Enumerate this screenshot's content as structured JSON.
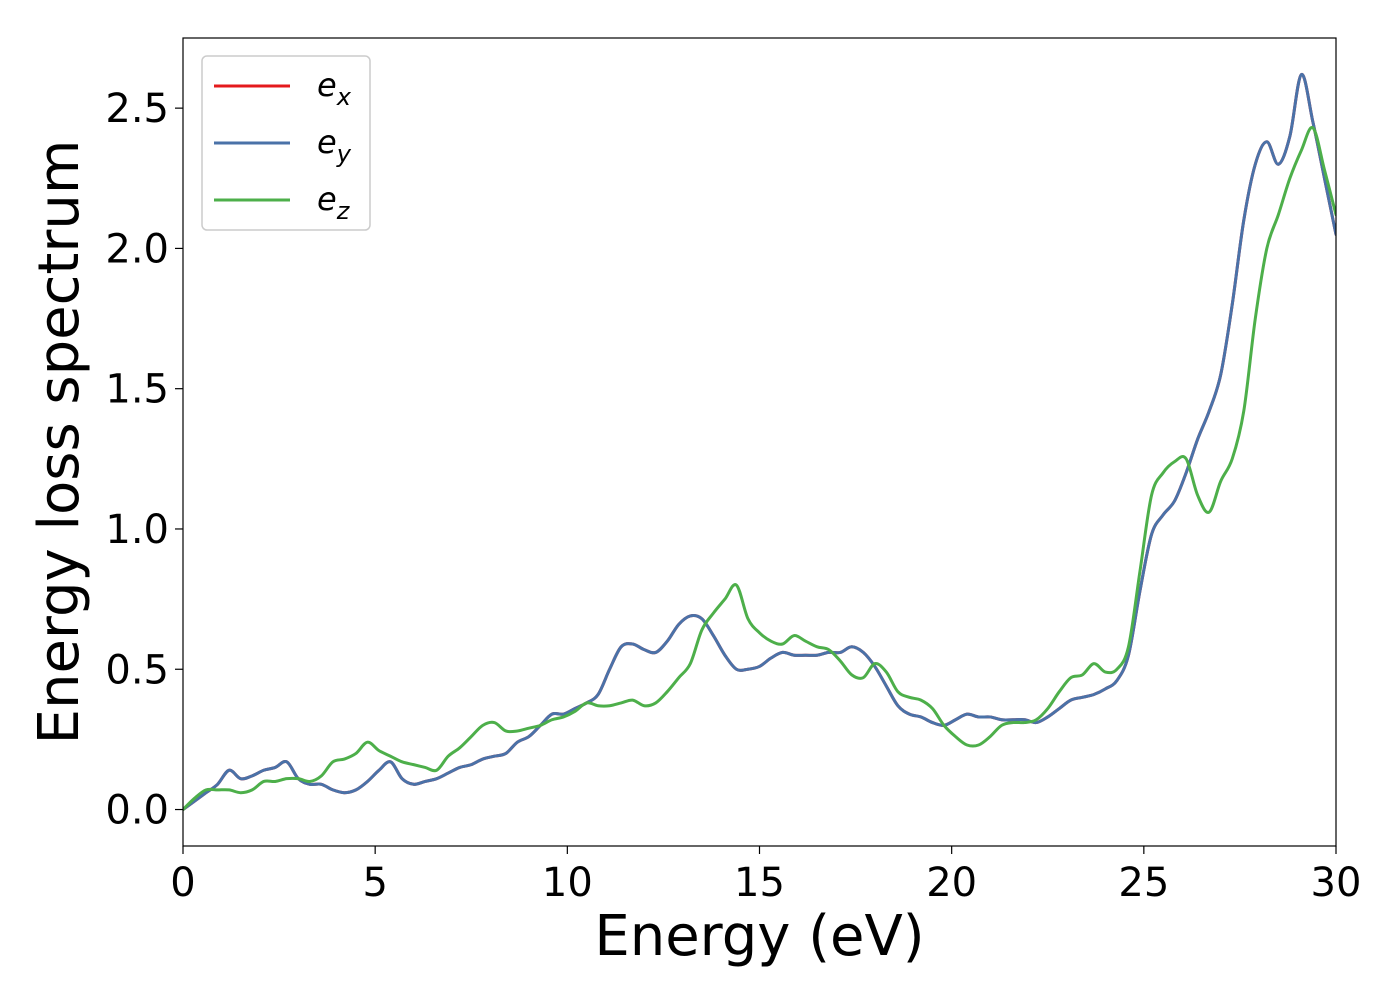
{
  "chart_data": {
    "type": "line",
    "title": "",
    "xlabel": "Energy (eV)",
    "ylabel": "Energy loss spectrum",
    "xlim": [
      0,
      30
    ],
    "ylim": [
      -0.13,
      2.75
    ],
    "xticks": [
      0,
      5,
      10,
      15,
      20,
      25,
      30
    ],
    "xtick_labels": [
      "0",
      "5",
      "10",
      "15",
      "20",
      "25",
      "30"
    ],
    "yticks": [
      0.0,
      0.5,
      1.0,
      1.5,
      2.0,
      2.5
    ],
    "ytick_labels": [
      "0.0",
      "0.5",
      "1.0",
      "1.5",
      "2.0",
      "2.5"
    ],
    "grid": false,
    "legend_position": "top-left",
    "series": [
      {
        "name": "e_x",
        "label_base": "e",
        "label_sub": "x",
        "color": "#e41a1c",
        "x": [
          0,
          0.3,
          0.6,
          0.9,
          1.2,
          1.5,
          1.8,
          2.1,
          2.4,
          2.7,
          3.0,
          3.3,
          3.6,
          3.9,
          4.2,
          4.5,
          4.8,
          5.1,
          5.4,
          5.7,
          6.0,
          6.3,
          6.6,
          6.9,
          7.2,
          7.5,
          7.8,
          8.1,
          8.4,
          8.7,
          9.0,
          9.3,
          9.6,
          9.9,
          10.2,
          10.5,
          10.8,
          11.1,
          11.4,
          11.7,
          12.0,
          12.3,
          12.6,
          12.9,
          13.2,
          13.5,
          13.8,
          14.1,
          14.4,
          14.7,
          15.0,
          15.3,
          15.6,
          15.9,
          16.2,
          16.5,
          16.8,
          17.1,
          17.4,
          17.7,
          18.0,
          18.3,
          18.6,
          18.9,
          19.2,
          19.5,
          19.8,
          20.1,
          20.4,
          20.7,
          21.0,
          21.3,
          21.6,
          21.9,
          22.2,
          22.5,
          22.8,
          23.1,
          23.4,
          23.7,
          24.0,
          24.3,
          24.6,
          24.9,
          25.2,
          25.5,
          25.8,
          26.1,
          26.4,
          26.7,
          27.0,
          27.3,
          27.6,
          27.9,
          28.2,
          28.5,
          28.8,
          29.1,
          29.4,
          29.7,
          30.0
        ],
        "values": [
          0.0,
          0.03,
          0.06,
          0.09,
          0.14,
          0.11,
          0.12,
          0.14,
          0.15,
          0.17,
          0.11,
          0.09,
          0.09,
          0.07,
          0.06,
          0.07,
          0.1,
          0.14,
          0.17,
          0.11,
          0.09,
          0.1,
          0.11,
          0.13,
          0.15,
          0.16,
          0.18,
          0.19,
          0.2,
          0.24,
          0.26,
          0.3,
          0.34,
          0.34,
          0.36,
          0.38,
          0.41,
          0.5,
          0.58,
          0.59,
          0.57,
          0.56,
          0.6,
          0.66,
          0.69,
          0.68,
          0.62,
          0.55,
          0.5,
          0.5,
          0.51,
          0.54,
          0.56,
          0.55,
          0.55,
          0.55,
          0.56,
          0.56,
          0.58,
          0.56,
          0.51,
          0.44,
          0.37,
          0.34,
          0.33,
          0.31,
          0.3,
          0.32,
          0.34,
          0.33,
          0.33,
          0.32,
          0.32,
          0.32,
          0.31,
          0.33,
          0.36,
          0.39,
          0.4,
          0.41,
          0.43,
          0.46,
          0.55,
          0.78,
          0.98,
          1.05,
          1.1,
          1.2,
          1.32,
          1.42,
          1.55,
          1.8,
          2.1,
          2.3,
          2.38,
          2.3,
          2.4,
          2.62,
          2.45,
          2.25,
          2.05
        ]
      },
      {
        "name": "e_y",
        "label_base": "e",
        "label_sub": "y",
        "color": "#4a72a8",
        "x": [
          0,
          0.3,
          0.6,
          0.9,
          1.2,
          1.5,
          1.8,
          2.1,
          2.4,
          2.7,
          3.0,
          3.3,
          3.6,
          3.9,
          4.2,
          4.5,
          4.8,
          5.1,
          5.4,
          5.7,
          6.0,
          6.3,
          6.6,
          6.9,
          7.2,
          7.5,
          7.8,
          8.1,
          8.4,
          8.7,
          9.0,
          9.3,
          9.6,
          9.9,
          10.2,
          10.5,
          10.8,
          11.1,
          11.4,
          11.7,
          12.0,
          12.3,
          12.6,
          12.9,
          13.2,
          13.5,
          13.8,
          14.1,
          14.4,
          14.7,
          15.0,
          15.3,
          15.6,
          15.9,
          16.2,
          16.5,
          16.8,
          17.1,
          17.4,
          17.7,
          18.0,
          18.3,
          18.6,
          18.9,
          19.2,
          19.5,
          19.8,
          20.1,
          20.4,
          20.7,
          21.0,
          21.3,
          21.6,
          21.9,
          22.2,
          22.5,
          22.8,
          23.1,
          23.4,
          23.7,
          24.0,
          24.3,
          24.6,
          24.9,
          25.2,
          25.5,
          25.8,
          26.1,
          26.4,
          26.7,
          27.0,
          27.3,
          27.6,
          27.9,
          28.2,
          28.5,
          28.8,
          29.1,
          29.4,
          29.7,
          30.0
        ],
        "values": [
          0.0,
          0.03,
          0.06,
          0.09,
          0.14,
          0.11,
          0.12,
          0.14,
          0.15,
          0.17,
          0.11,
          0.09,
          0.09,
          0.07,
          0.06,
          0.07,
          0.1,
          0.14,
          0.17,
          0.11,
          0.09,
          0.1,
          0.11,
          0.13,
          0.15,
          0.16,
          0.18,
          0.19,
          0.2,
          0.24,
          0.26,
          0.3,
          0.34,
          0.34,
          0.36,
          0.38,
          0.41,
          0.5,
          0.58,
          0.59,
          0.57,
          0.56,
          0.6,
          0.66,
          0.69,
          0.68,
          0.62,
          0.55,
          0.5,
          0.5,
          0.51,
          0.54,
          0.56,
          0.55,
          0.55,
          0.55,
          0.56,
          0.56,
          0.58,
          0.56,
          0.51,
          0.44,
          0.37,
          0.34,
          0.33,
          0.31,
          0.3,
          0.32,
          0.34,
          0.33,
          0.33,
          0.32,
          0.32,
          0.32,
          0.31,
          0.33,
          0.36,
          0.39,
          0.4,
          0.41,
          0.43,
          0.46,
          0.55,
          0.78,
          0.98,
          1.05,
          1.1,
          1.2,
          1.32,
          1.42,
          1.55,
          1.8,
          2.1,
          2.3,
          2.38,
          2.3,
          2.4,
          2.62,
          2.45,
          2.25,
          2.05
        ]
      },
      {
        "name": "e_z",
        "label_base": "e",
        "label_sub": "z",
        "color": "#4daf4a",
        "x": [
          0,
          0.3,
          0.6,
          0.9,
          1.2,
          1.5,
          1.8,
          2.1,
          2.4,
          2.7,
          3.0,
          3.3,
          3.6,
          3.9,
          4.2,
          4.5,
          4.8,
          5.1,
          5.4,
          5.7,
          6.0,
          6.3,
          6.6,
          6.9,
          7.2,
          7.5,
          7.8,
          8.1,
          8.4,
          8.7,
          9.0,
          9.3,
          9.6,
          9.9,
          10.2,
          10.5,
          10.8,
          11.1,
          11.4,
          11.7,
          12.0,
          12.3,
          12.6,
          12.9,
          13.2,
          13.5,
          13.8,
          14.1,
          14.4,
          14.7,
          15.0,
          15.3,
          15.6,
          15.9,
          16.2,
          16.5,
          16.8,
          17.1,
          17.4,
          17.7,
          18.0,
          18.3,
          18.6,
          18.9,
          19.2,
          19.5,
          19.8,
          20.1,
          20.4,
          20.7,
          21.0,
          21.3,
          21.6,
          21.9,
          22.2,
          22.5,
          22.8,
          23.1,
          23.4,
          23.7,
          24.0,
          24.3,
          24.6,
          24.9,
          25.2,
          25.5,
          25.8,
          26.1,
          26.4,
          26.7,
          27.0,
          27.3,
          27.6,
          27.9,
          28.2,
          28.5,
          28.8,
          29.1,
          29.4,
          29.7,
          30.0
        ],
        "values": [
          0.0,
          0.04,
          0.07,
          0.07,
          0.07,
          0.06,
          0.07,
          0.1,
          0.1,
          0.11,
          0.11,
          0.1,
          0.12,
          0.17,
          0.18,
          0.2,
          0.24,
          0.21,
          0.19,
          0.17,
          0.16,
          0.15,
          0.14,
          0.19,
          0.22,
          0.26,
          0.3,
          0.31,
          0.28,
          0.28,
          0.29,
          0.3,
          0.32,
          0.33,
          0.35,
          0.38,
          0.37,
          0.37,
          0.38,
          0.39,
          0.37,
          0.38,
          0.42,
          0.47,
          0.52,
          0.64,
          0.7,
          0.75,
          0.8,
          0.68,
          0.63,
          0.6,
          0.59,
          0.62,
          0.6,
          0.58,
          0.57,
          0.53,
          0.48,
          0.47,
          0.52,
          0.49,
          0.42,
          0.4,
          0.39,
          0.36,
          0.3,
          0.26,
          0.23,
          0.23,
          0.26,
          0.3,
          0.31,
          0.31,
          0.32,
          0.36,
          0.42,
          0.47,
          0.48,
          0.52,
          0.49,
          0.5,
          0.58,
          0.85,
          1.12,
          1.2,
          1.24,
          1.25,
          1.12,
          1.06,
          1.17,
          1.25,
          1.42,
          1.75,
          2.0,
          2.12,
          2.25,
          2.35,
          2.43,
          2.28,
          2.12
        ]
      }
    ]
  }
}
